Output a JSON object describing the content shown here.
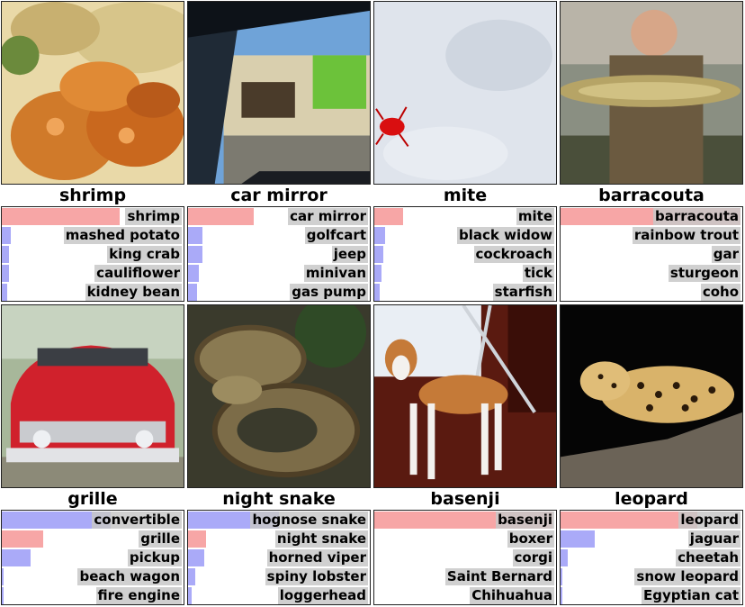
{
  "colors": {
    "correct_bar": "#f7a6a6",
    "incorrect_bar": "#aaaaf8",
    "label_bg": "#c8c8c8"
  },
  "panels": [
    {
      "ground_truth": "shrimp",
      "photo": "photo of fried shrimp with pasta",
      "predictions": [
        {
          "label": "shrimp",
          "prob": 0.65,
          "correct": true
        },
        {
          "label": "mashed potato",
          "prob": 0.05,
          "correct": false
        },
        {
          "label": "king crab",
          "prob": 0.04,
          "correct": false
        },
        {
          "label": "cauliflower",
          "prob": 0.04,
          "correct": false
        },
        {
          "label": "kidney bean",
          "prob": 0.03,
          "correct": false
        }
      ]
    },
    {
      "ground_truth": "car mirror",
      "photo": "photo of car side mirror reflecting a storefront",
      "predictions": [
        {
          "label": "car mirror",
          "prob": 0.36,
          "correct": true
        },
        {
          "label": "golfcart",
          "prob": 0.08,
          "correct": false
        },
        {
          "label": "jeep",
          "prob": 0.08,
          "correct": false
        },
        {
          "label": "minivan",
          "prob": 0.06,
          "correct": false
        },
        {
          "label": "gas pump",
          "prob": 0.05,
          "correct": false
        }
      ]
    },
    {
      "ground_truth": "mite",
      "photo": "photo of a red mite on a pale surface",
      "predictions": [
        {
          "label": "mite",
          "prob": 0.16,
          "correct": true
        },
        {
          "label": "black widow",
          "prob": 0.06,
          "correct": false
        },
        {
          "label": "cockroach",
          "prob": 0.05,
          "correct": false
        },
        {
          "label": "tick",
          "prob": 0.04,
          "correct": false
        },
        {
          "label": "starfish",
          "prob": 0.03,
          "correct": false
        }
      ]
    },
    {
      "ground_truth": "barracouta",
      "photo": "photo of a man holding a large fish",
      "predictions": [
        {
          "label": "barracouta",
          "prob": 0.99,
          "correct": true
        },
        {
          "label": "rainbow trout",
          "prob": 0.0,
          "correct": false
        },
        {
          "label": "gar",
          "prob": 0.0,
          "correct": false
        },
        {
          "label": "sturgeon",
          "prob": 0.0,
          "correct": false
        },
        {
          "label": "coho",
          "prob": 0.0,
          "correct": false
        }
      ]
    },
    {
      "ground_truth": "grille",
      "photo": "photo of the front of a red classic car",
      "predictions": [
        {
          "label": "convertible",
          "prob": 0.6,
          "correct": false
        },
        {
          "label": "grille",
          "prob": 0.23,
          "correct": true
        },
        {
          "label": "pickup",
          "prob": 0.16,
          "correct": false
        },
        {
          "label": "beach wagon",
          "prob": 0.01,
          "correct": false
        },
        {
          "label": "fire engine",
          "prob": 0.01,
          "correct": false
        }
      ]
    },
    {
      "ground_truth": "night snake",
      "photo": "photo of a coiled patterned snake",
      "predictions": [
        {
          "label": "hognose snake",
          "prob": 0.5,
          "correct": false
        },
        {
          "label": "night snake",
          "prob": 0.1,
          "correct": true
        },
        {
          "label": "horned viper",
          "prob": 0.09,
          "correct": false
        },
        {
          "label": "spiny lobster",
          "prob": 0.04,
          "correct": false
        },
        {
          "label": "loggerhead",
          "prob": 0.02,
          "correct": false
        }
      ]
    },
    {
      "ground_truth": "basenji",
      "photo": "photo of a tan and white dog standing",
      "predictions": [
        {
          "label": "basenji",
          "prob": 0.98,
          "correct": true
        },
        {
          "label": "boxer",
          "prob": 0.0,
          "correct": false
        },
        {
          "label": "corgi",
          "prob": 0.0,
          "correct": false
        },
        {
          "label": "Saint Bernard",
          "prob": 0.0,
          "correct": false
        },
        {
          "label": "Chihuahua",
          "prob": 0.0,
          "correct": false
        }
      ]
    },
    {
      "ground_truth": "leopard",
      "photo": "photo of a spotted leopard on a branch at night",
      "predictions": [
        {
          "label": "leopard",
          "prob": 0.75,
          "correct": true
        },
        {
          "label": "jaguar",
          "prob": 0.19,
          "correct": false
        },
        {
          "label": "cheetah",
          "prob": 0.04,
          "correct": false
        },
        {
          "label": "snow leopard",
          "prob": 0.01,
          "correct": false
        },
        {
          "label": "Egyptian cat",
          "prob": 0.01,
          "correct": false
        }
      ]
    }
  ]
}
